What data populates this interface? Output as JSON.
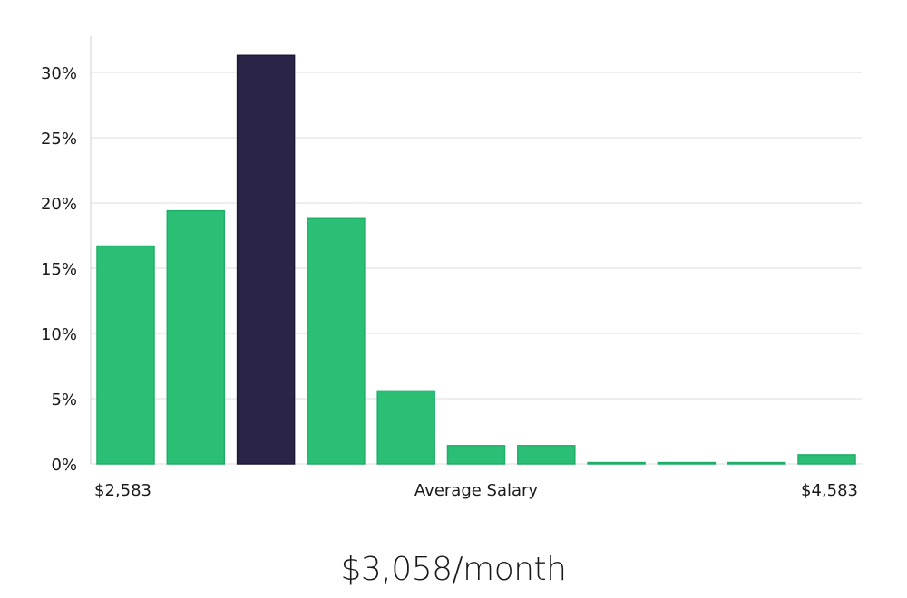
{
  "chart_data": {
    "type": "bar",
    "title": "",
    "xlabel": "Average Salary",
    "ylabel": "",
    "x_min_label": "$2,583",
    "x_max_label": "$4,583",
    "ylim": [
      0,
      33
    ],
    "y_ticks": [
      {
        "value": 0,
        "label": "0%"
      },
      {
        "value": 5,
        "label": "5%"
      },
      {
        "value": 10,
        "label": "10%"
      },
      {
        "value": 15,
        "label": "15%"
      },
      {
        "value": 20,
        "label": "20%"
      },
      {
        "value": 25,
        "label": "25%"
      },
      {
        "value": 30,
        "label": "30%"
      }
    ],
    "values": [
      16.7,
      19.4,
      31.3,
      18.8,
      5.6,
      1.4,
      1.4,
      0.1,
      0.1,
      0.1,
      0.7
    ],
    "highlight_index": 2,
    "grid": true,
    "colors": {
      "bar": "#2bbf76",
      "bar_stroke": "#1fae66",
      "highlight": "#2a2547",
      "grid": "#dcdcdc",
      "axis": "#cfcfcf"
    }
  },
  "salary_display": "$3,058/month"
}
